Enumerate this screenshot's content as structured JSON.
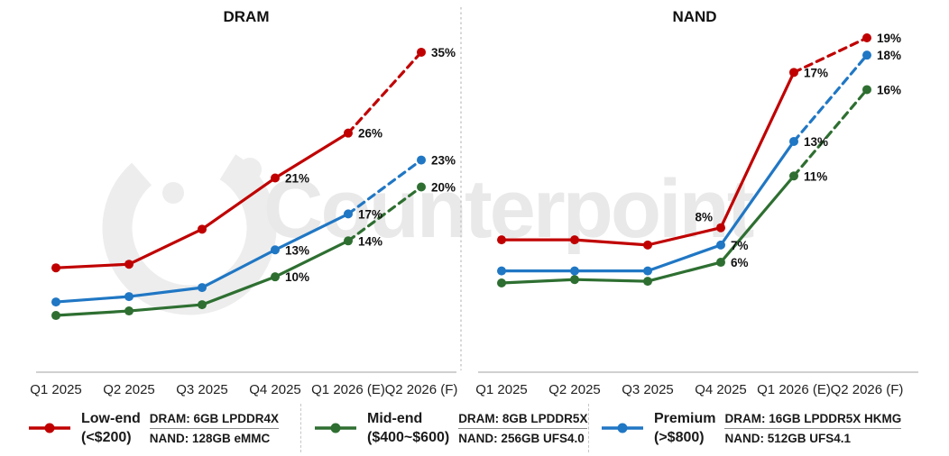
{
  "watermark": {
    "text": "Counterpoint"
  },
  "colors": {
    "low_end": "#C00000",
    "mid_end": "#2E6F31",
    "premium": "#2077C4",
    "axis_line": "#C9C9C9",
    "divider": "#C6C6C6",
    "watermark_gray": "#E9E9E9",
    "text": "#1A1A1A"
  },
  "chart_data": [
    {
      "type": "line",
      "title": "DRAM",
      "categories": [
        "Q1 2025",
        "Q2 2025",
        "Q3 2025",
        "Q4 2025",
        "Q1 2026 (E)",
        "Q2 2026 (F)"
      ],
      "series": [
        {
          "name": "Low-end (<$200)",
          "color": "#C00000",
          "values": [
            11,
            11.4,
            15.3,
            21,
            26,
            35
          ],
          "labels": [
            null,
            null,
            null,
            "21%",
            "26%",
            "35%"
          ]
        },
        {
          "name": "Mid-end ($400~$600)",
          "color": "#2E6F31",
          "values": [
            5.7,
            6.2,
            6.9,
            10,
            14,
            20
          ],
          "labels": [
            null,
            null,
            null,
            "10%",
            "14%",
            "20%"
          ]
        },
        {
          "name": "Premium (>$800)",
          "color": "#2077C4",
          "values": [
            7.2,
            7.8,
            8.8,
            13,
            17,
            23
          ],
          "labels": [
            null,
            null,
            null,
            "13%",
            "17%",
            "23%"
          ]
        }
      ],
      "ylim": [
        4.7,
        36.6
      ],
      "forecast_dashed_from_index": 4,
      "grid": false,
      "legend_position": "bottom"
    },
    {
      "type": "line",
      "title": "NAND",
      "categories": [
        "Q1 2025",
        "Q2 2025",
        "Q3 2025",
        "Q4 2025",
        "Q1 2026 (E)",
        "Q2 2026 (F)"
      ],
      "series": [
        {
          "name": "Low-end (<$200)",
          "color": "#C00000",
          "values": [
            7.3,
            7.3,
            7.0,
            8,
            17,
            19
          ],
          "labels": [
            null,
            null,
            null,
            "8%",
            "17%",
            "19%"
          ],
          "label_overrides": {
            "3": {
              "dx": -9,
              "dy": -7,
              "anchor": "end"
            }
          }
        },
        {
          "name": "Mid-end ($400~$600)",
          "color": "#2E6F31",
          "values": [
            4.8,
            5.0,
            4.9,
            6,
            11,
            16
          ],
          "labels": [
            null,
            null,
            null,
            "6%",
            "11%",
            "16%"
          ]
        },
        {
          "name": "Premium (>$800)",
          "color": "#2077C4",
          "values": [
            5.5,
            5.5,
            5.5,
            7,
            13,
            18
          ],
          "labels": [
            null,
            null,
            null,
            "7%",
            "13%",
            "18%"
          ]
        }
      ],
      "ylim": [
        2.4,
        19.0
      ],
      "forecast_dashed_from_index": 4,
      "grid": false,
      "legend_position": "bottom"
    }
  ],
  "legend": {
    "groups": [
      {
        "name_line1": "Low-end",
        "name_line2": "(<$200)",
        "color": "#C00000",
        "dram": "DRAM: 6GB LPDDR4X",
        "nand": "NAND: 128GB eMMC"
      },
      {
        "name_line1": "Mid-end",
        "name_line2": "($400~$600)",
        "color": "#2E6F31",
        "dram": "DRAM: 8GB LPDDR5X",
        "nand": "NAND: 256GB UFS4.0"
      },
      {
        "name_line1": "Premium",
        "name_line2": "(>$800)",
        "color": "#2077C4",
        "dram": "DRAM: 16GB LPDDR5X HKMG",
        "nand": "NAND: 512GB UFS4.1"
      }
    ]
  }
}
